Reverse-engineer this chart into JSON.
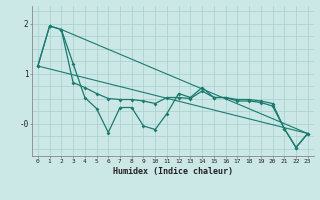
{
  "xlabel": "Humidex (Indice chaleur)",
  "bg_color": "#cce8e6",
  "line_color": "#1a7a6e",
  "grid_color": "#a8cece",
  "xlim": [
    -0.5,
    23.5
  ],
  "ylim": [
    -0.65,
    2.35
  ],
  "xticks": [
    0,
    1,
    2,
    3,
    4,
    5,
    6,
    7,
    8,
    9,
    10,
    11,
    12,
    13,
    14,
    15,
    16,
    17,
    18,
    19,
    20,
    21,
    22,
    23
  ],
  "yticks": [
    2,
    1,
    0
  ],
  "ytick_labels": [
    "2",
    "1",
    "-0"
  ],
  "line1_x": [
    0,
    1,
    2,
    3,
    4,
    5,
    6,
    7,
    8,
    9,
    10,
    11,
    12,
    13,
    14,
    15,
    16,
    17,
    18,
    19,
    20,
    21,
    22,
    23
  ],
  "line1_y": [
    1.15,
    1.95,
    1.88,
    0.82,
    0.72,
    0.6,
    0.5,
    0.48,
    0.48,
    0.45,
    0.4,
    0.52,
    0.52,
    0.5,
    0.65,
    0.52,
    0.52,
    0.48,
    0.48,
    0.45,
    0.4,
    -0.1,
    -0.48,
    -0.2
  ],
  "line2_x": [
    0,
    1,
    2,
    3,
    4,
    5,
    6,
    7,
    8,
    9,
    10,
    11,
    12,
    13,
    14,
    15,
    16,
    17,
    18,
    19,
    20,
    21,
    22,
    23
  ],
  "line2_y": [
    1.15,
    1.95,
    1.88,
    1.2,
    0.52,
    0.3,
    -0.18,
    0.32,
    0.32,
    -0.05,
    -0.12,
    0.2,
    0.6,
    0.52,
    0.72,
    0.52,
    0.52,
    0.45,
    0.45,
    0.42,
    0.35,
    -0.1,
    -0.48,
    -0.2
  ],
  "line3_x": [
    0,
    23
  ],
  "line3_y": [
    1.15,
    -0.2
  ],
  "line4_x": [
    2,
    23
  ],
  "line4_y": [
    1.88,
    -0.2
  ]
}
